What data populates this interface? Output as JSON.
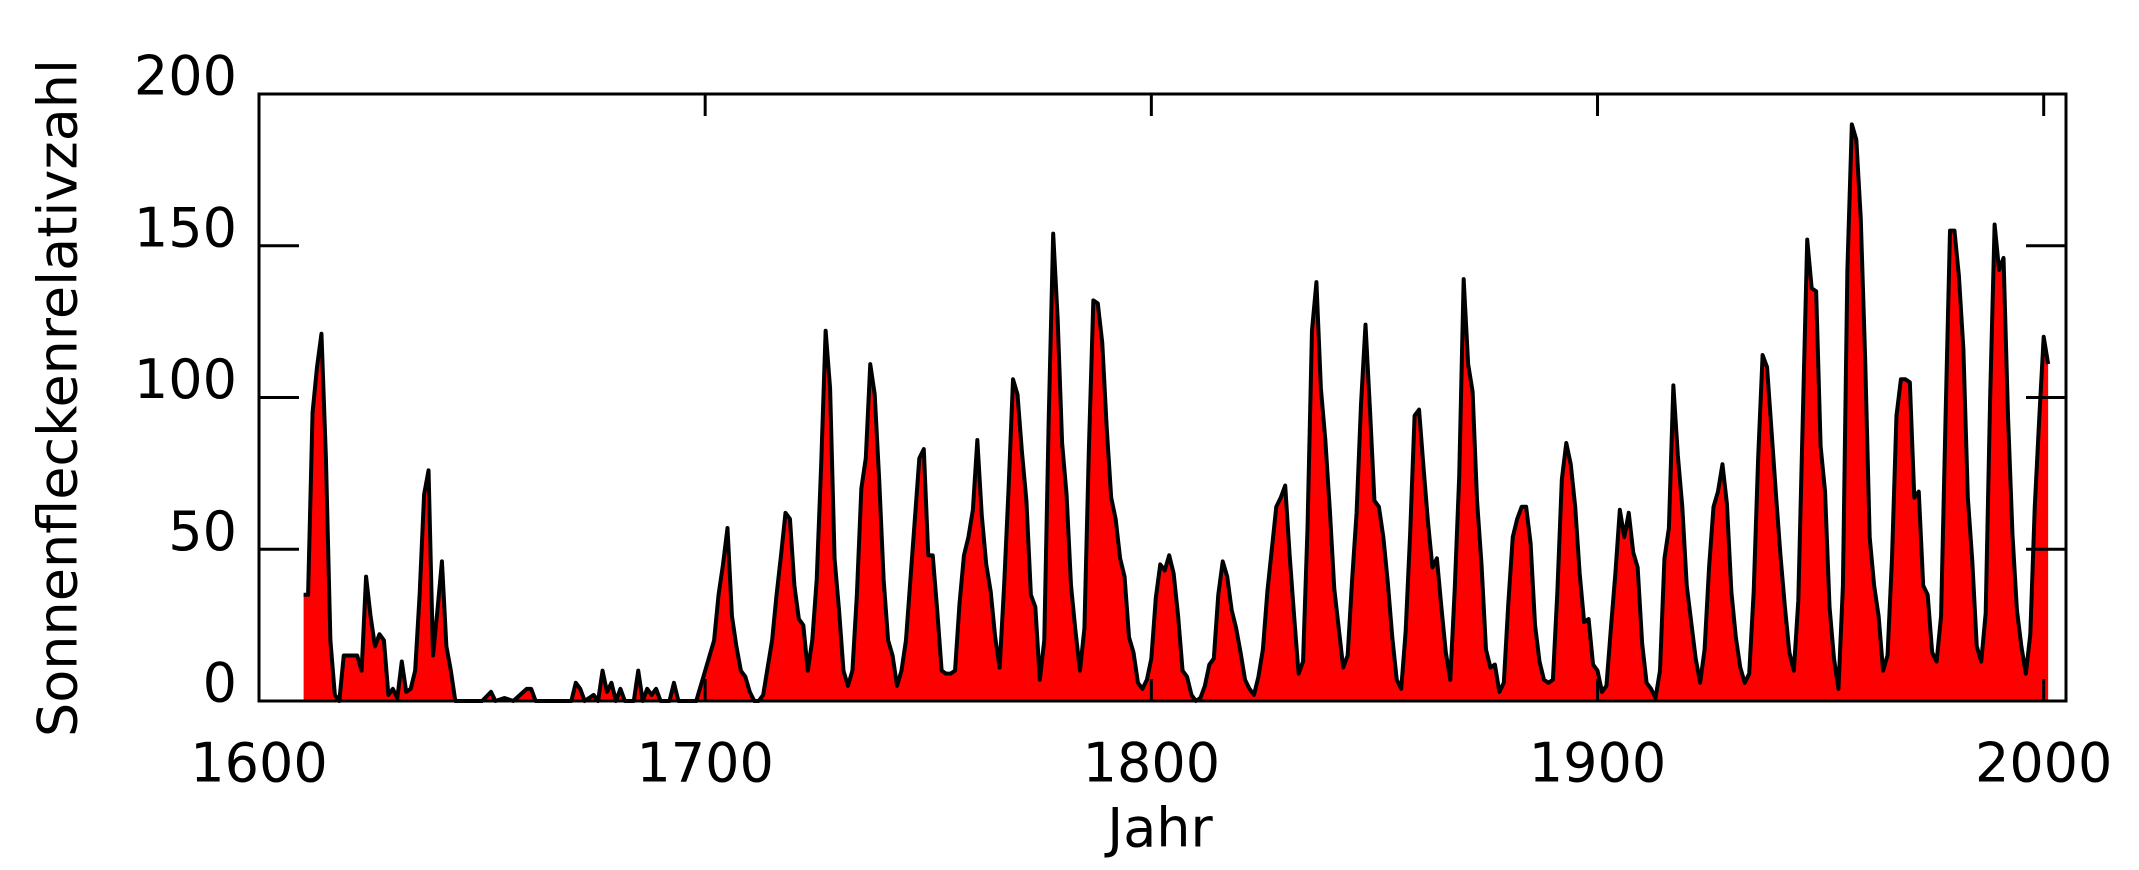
{
  "chart_data": {
    "type": "area",
    "x_label": "Jahr",
    "y_label": "Sonnenfleckenrelativzahl",
    "fill_color": "#ff0000",
    "line_color": "#000000",
    "xlim": [
      1600,
      2005
    ],
    "xticks": [
      1600,
      1700,
      1800,
      1900,
      2000
    ],
    "ylim": [
      0,
      200
    ],
    "yticks": [
      0,
      50,
      100,
      150,
      200
    ],
    "x": [
      1610,
      1611,
      1612,
      1613,
      1614,
      1615,
      1616,
      1617,
      1618,
      1619,
      1620,
      1621,
      1622,
      1623,
      1624,
      1625,
      1626,
      1627,
      1628,
      1629,
      1630,
      1631,
      1632,
      1633,
      1634,
      1635,
      1636,
      1637,
      1638,
      1639,
      1640,
      1641,
      1642,
      1643,
      1644,
      1650,
      1652,
      1653,
      1655,
      1657,
      1660,
      1661,
      1662,
      1670,
      1671,
      1672,
      1673,
      1675,
      1676,
      1677,
      1678,
      1679,
      1680,
      1681,
      1682,
      1684,
      1685,
      1686,
      1687,
      1688,
      1689,
      1690,
      1692,
      1693,
      1694,
      1698,
      1700,
      1701,
      1702,
      1703,
      1704,
      1705,
      1706,
      1707,
      1708,
      1709,
      1710,
      1711,
      1712,
      1713,
      1714,
      1715,
      1716,
      1717,
      1718,
      1719,
      1720,
      1721,
      1722,
      1723,
      1724,
      1725,
      1726,
      1727,
      1728,
      1729,
      1730,
      1731,
      1732,
      1733,
      1734,
      1735,
      1736,
      1737,
      1738,
      1739,
      1740,
      1741,
      1742,
      1743,
      1744,
      1745,
      1746,
      1747,
      1748,
      1749,
      1750,
      1751,
      1752,
      1753,
      1754,
      1755,
      1756,
      1757,
      1758,
      1759,
      1760,
      1761,
      1762,
      1763,
      1764,
      1765,
      1766,
      1767,
      1768,
      1769,
      1770,
      1771,
      1772,
      1773,
      1774,
      1775,
      1776,
      1777,
      1778,
      1779,
      1780,
      1781,
      1782,
      1783,
      1784,
      1785,
      1786,
      1787,
      1788,
      1789,
      1790,
      1791,
      1792,
      1793,
      1794,
      1795,
      1796,
      1797,
      1798,
      1799,
      1800,
      1801,
      1802,
      1803,
      1804,
      1805,
      1806,
      1807,
      1808,
      1809,
      1810,
      1811,
      1812,
      1813,
      1814,
      1815,
      1816,
      1817,
      1818,
      1819,
      1820,
      1821,
      1822,
      1823,
      1824,
      1825,
      1826,
      1827,
      1828,
      1829,
      1830,
      1831,
      1832,
      1833,
      1834,
      1835,
      1836,
      1837,
      1838,
      1839,
      1840,
      1841,
      1842,
      1843,
      1844,
      1845,
      1846,
      1847,
      1848,
      1849,
      1850,
      1851,
      1852,
      1853,
      1854,
      1855,
      1856,
      1857,
      1858,
      1859,
      1860,
      1861,
      1862,
      1863,
      1864,
      1865,
      1866,
      1867,
      1868,
      1869,
      1870,
      1871,
      1872,
      1873,
      1874,
      1875,
      1876,
      1877,
      1878,
      1879,
      1880,
      1881,
      1882,
      1883,
      1884,
      1885,
      1886,
      1887,
      1888,
      1889,
      1890,
      1891,
      1892,
      1893,
      1894,
      1895,
      1896,
      1897,
      1898,
      1899,
      1900,
      1901,
      1902,
      1903,
      1904,
      1905,
      1906,
      1907,
      1908,
      1909,
      1910,
      1911,
      1912,
      1913,
      1914,
      1915,
      1916,
      1917,
      1918,
      1919,
      1920,
      1921,
      1922,
      1923,
      1924,
      1925,
      1926,
      1927,
      1928,
      1929,
      1930,
      1931,
      1932,
      1933,
      1934,
      1935,
      1936,
      1937,
      1938,
      1939,
      1940,
      1941,
      1942,
      1943,
      1944,
      1945,
      1946,
      1947,
      1948,
      1949,
      1950,
      1951,
      1952,
      1953,
      1954,
      1955,
      1956,
      1957,
      1958,
      1959,
      1960,
      1961,
      1962,
      1963,
      1964,
      1965,
      1966,
      1967,
      1968,
      1969,
      1970,
      1971,
      1972,
      1973,
      1974,
      1975,
      1976,
      1977,
      1978,
      1979,
      1980,
      1981,
      1982,
      1983,
      1984,
      1985,
      1986,
      1987,
      1988,
      1989,
      1990,
      1991,
      1992,
      1993,
      1994,
      1995,
      1996,
      1997,
      1998,
      1999,
      2000,
      2001
    ],
    "values": [
      35,
      35,
      95,
      110,
      121,
      80,
      20,
      2,
      0,
      15,
      15,
      15,
      15,
      10,
      41,
      28,
      18,
      22,
      20,
      2,
      4,
      1,
      13,
      3,
      4,
      10,
      35,
      68,
      76,
      15,
      30,
      46,
      18,
      10,
      0,
      0,
      3,
      0,
      1,
      0,
      4,
      4,
      0,
      0,
      6,
      4,
      0,
      2,
      0,
      10,
      3,
      6,
      0,
      4,
      0,
      0,
      10,
      0,
      4,
      2,
      4,
      0,
      0,
      6,
      0,
      0,
      10,
      15,
      20,
      35,
      45,
      57,
      28,
      18,
      10,
      8,
      3,
      0,
      0,
      2,
      11,
      20,
      35,
      48,
      62,
      60,
      38,
      27,
      25,
      10,
      20,
      40,
      78,
      122,
      103,
      47,
      30,
      10,
      5,
      10,
      35,
      70,
      80,
      111,
      101,
      73,
      40,
      20,
      15,
      5,
      10,
      20,
      40,
      60,
      80,
      83,
      48,
      48,
      30,
      10,
      9,
      9,
      10,
      32,
      48,
      54,
      63,
      86,
      61,
      45,
      36,
      21,
      11,
      38,
      70,
      106,
      101,
      82,
      66,
      35,
      31,
      7,
      20,
      93,
      154,
      126,
      85,
      68,
      38,
      23,
      10,
      24,
      83,
      132,
      131,
      118,
      90,
      67,
      60,
      47,
      41,
      21,
      16,
      6,
      4,
      7,
      14,
      34,
      45,
      43,
      48,
      42,
      28,
      10,
      8,
      2,
      0,
      1,
      5,
      12,
      14,
      35,
      46,
      41,
      30,
      24,
      16,
      7,
      4,
      2,
      8,
      17,
      36,
      50,
      64,
      67,
      71,
      48,
      28,
      9,
      13,
      57,
      122,
      138,
      103,
      86,
      63,
      37,
      24,
      11,
      15,
      40,
      62,
      98,
      124,
      96,
      66,
      64,
      54,
      39,
      21,
      7,
      4,
      23,
      55,
      94,
      96,
      77,
      59,
      44,
      47,
      31,
      16,
      7,
      37,
      74,
      139,
      111,
      102,
      66,
      45,
      17,
      11,
      12,
      3,
      6,
      32,
      54,
      60,
      64,
      64,
      52,
      25,
      13,
      7,
      6,
      7,
      36,
      73,
      85,
      78,
      64,
      42,
      26,
      27,
      12,
      10,
      3,
      5,
      24,
      42,
      63,
      54,
      62,
      49,
      44,
      19,
      6,
      4,
      1,
      10,
      47,
      57,
      104,
      81,
      64,
      38,
      26,
      14,
      6,
      17,
      44,
      64,
      69,
      78,
      65,
      36,
      21,
      11,
      6,
      9,
      36,
      80,
      114,
      110,
      89,
      68,
      48,
      31,
      16,
      10,
      33,
      93,
      152,
      136,
      135,
      84,
      69,
      31,
      14,
      4,
      38,
      142,
      190,
      185,
      159,
      112,
      54,
      38,
      28,
      10,
      15,
      47,
      94,
      106,
      106,
      105,
      67,
      69,
      38,
      35,
      16,
      13,
      28,
      93,
      155,
      155,
      140,
      116,
      67,
      46,
      18,
      13,
      29,
      100,
      157,
      142,
      146,
      94,
      55,
      30,
      18,
      9,
      22,
      64,
      93,
      120,
      111
    ]
  }
}
